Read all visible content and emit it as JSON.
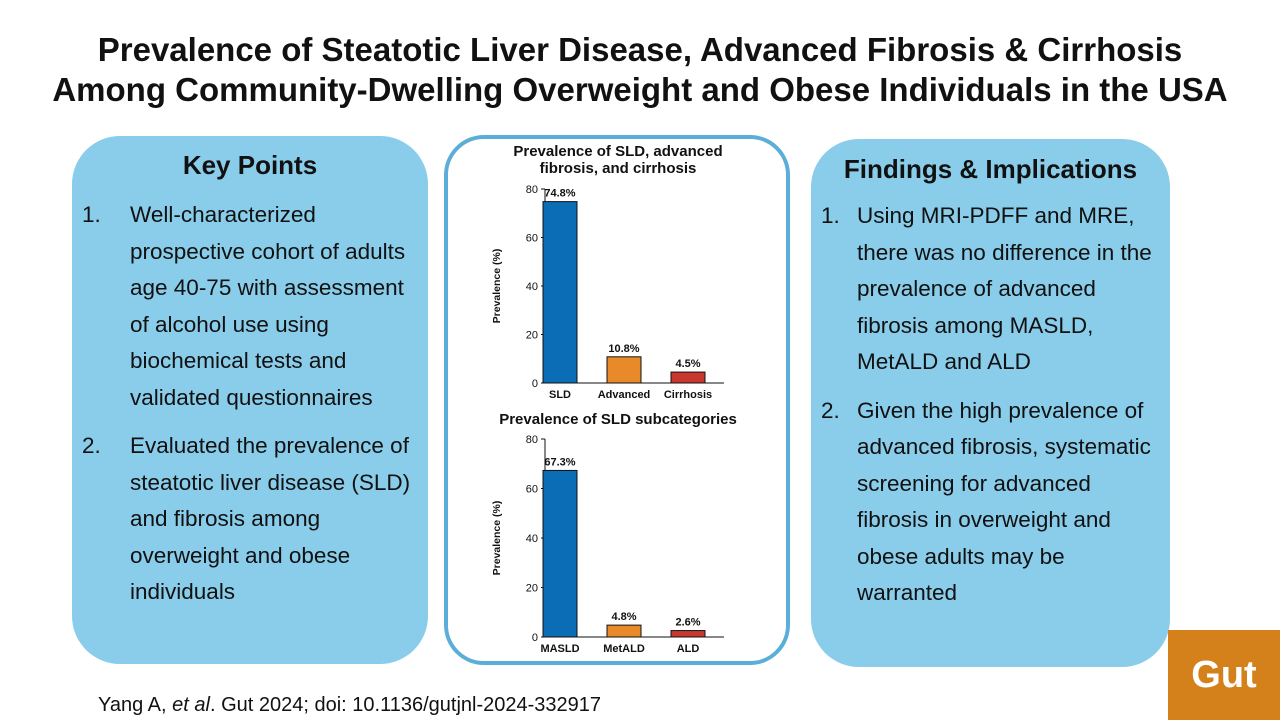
{
  "title": {
    "line1": "Prevalence of Steatotic Liver Disease, Advanced Fibrosis & Cirrhosis",
    "line2": "Among Community-Dwelling Overweight and Obese Individuals in the USA"
  },
  "key_points": {
    "heading": "Key Points",
    "items": [
      {
        "num": "1.",
        "text": "Well-characterized prospective cohort of adults age 40-75 with assessment of alcohol use using biochemical tests and validated questionnaires"
      },
      {
        "num": "2.",
        "text": "Evaluated the prevalence of steatotic liver disease (SLD) and fibrosis among overweight and obese individuals"
      }
    ]
  },
  "findings": {
    "heading": "Findings & Implications",
    "items": [
      {
        "num": "1.",
        "text": "Using MRI-PDFF and MRE, there was no difference in the prevalence of advanced fibrosis among MASLD, MetALD and ALD"
      },
      {
        "num": "2.",
        "text": "Given the high prevalence of advanced fibrosis, systematic screening for advanced fibrosis in overweight and obese adults may be warranted"
      }
    ]
  },
  "chart_data": [
    {
      "type": "bar",
      "title": "Prevalence of SLD, advanced fibrosis, and cirrhosis",
      "title_lines": [
        "Prevalence of SLD, advanced",
        "fibrosis, and cirrhosis"
      ],
      "ylabel": "Prevalence (%)",
      "ylim": [
        0,
        80
      ],
      "yticks": [
        0,
        20,
        40,
        60,
        80
      ],
      "categories": [
        "SLD",
        "Advanced",
        "Cirrhosis"
      ],
      "values": [
        74.8,
        10.8,
        4.5
      ],
      "data_labels": [
        "74.8%",
        "10.8%",
        "4.5%"
      ],
      "colors": [
        "#0a6db5",
        "#e8892a",
        "#c9382e"
      ]
    },
    {
      "type": "bar",
      "title": "Prevalence of SLD subcategories",
      "title_lines": [
        "Prevalence of SLD subcategories"
      ],
      "ylabel": "Prevalence (%)",
      "ylim": [
        0,
        80
      ],
      "yticks": [
        0,
        20,
        40,
        60,
        80
      ],
      "categories": [
        "MASLD",
        "MetALD",
        "ALD"
      ],
      "values": [
        67.3,
        4.8,
        2.6
      ],
      "data_labels": [
        "67.3%",
        "4.8%",
        "2.6%"
      ],
      "colors": [
        "#0a6db5",
        "#e8892a",
        "#c9382e"
      ]
    }
  ],
  "citation": {
    "authors": "Yang A, ",
    "etal": "et al",
    "rest": ". Gut 2024; doi: 10.1136/gutjnl-2024-332917"
  },
  "logo": {
    "text": "Gut",
    "color": "#d4811b"
  }
}
